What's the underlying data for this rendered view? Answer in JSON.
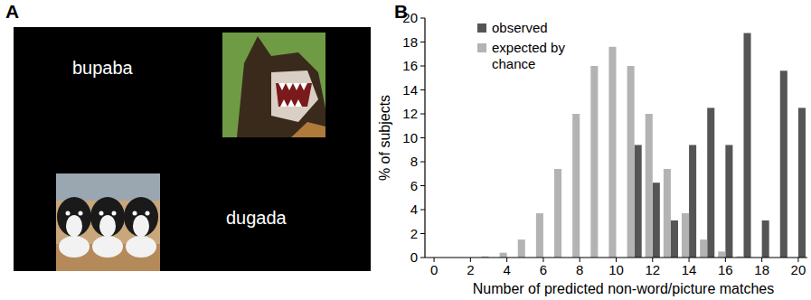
{
  "panel_labels": [
    "A",
    "B"
  ],
  "panel_a": {
    "words": [
      "bupaba",
      "dugada"
    ]
  },
  "chart_data": {
    "type": "bar",
    "x_label": "Number of predicted non-word/picture matches",
    "y_label": "% of subjects",
    "x": [
      0,
      1,
      2,
      3,
      4,
      5,
      6,
      7,
      8,
      9,
      10,
      11,
      12,
      13,
      14,
      15,
      16,
      17,
      18,
      19,
      20
    ],
    "series": [
      {
        "name": "observed",
        "color": "#555555",
        "values": [
          0,
          0,
          0,
          0,
          0,
          0,
          0,
          0,
          0,
          0,
          0,
          9.4,
          6.25,
          3.1,
          9.4,
          12.5,
          9.4,
          18.75,
          3.1,
          15.6,
          12.5
        ]
      },
      {
        "name": "expected by chance",
        "color": "#b3b3b3",
        "values": [
          0,
          0,
          0,
          0.1,
          0.4,
          1.5,
          3.7,
          7.4,
          12,
          16,
          17.6,
          16,
          12,
          7.4,
          3.7,
          1.5,
          0.5,
          0.1,
          0,
          0,
          0
        ]
      }
    ],
    "xlim": [
      -0.5,
      20.5
    ],
    "xticks": [
      0,
      2,
      4,
      6,
      8,
      10,
      12,
      14,
      16,
      18,
      20
    ],
    "ylim": [
      0,
      20
    ],
    "yticks": [
      0,
      2,
      4,
      6,
      8,
      10,
      12,
      14,
      16,
      18,
      20
    ],
    "grid": false,
    "legend": "upper left"
  }
}
